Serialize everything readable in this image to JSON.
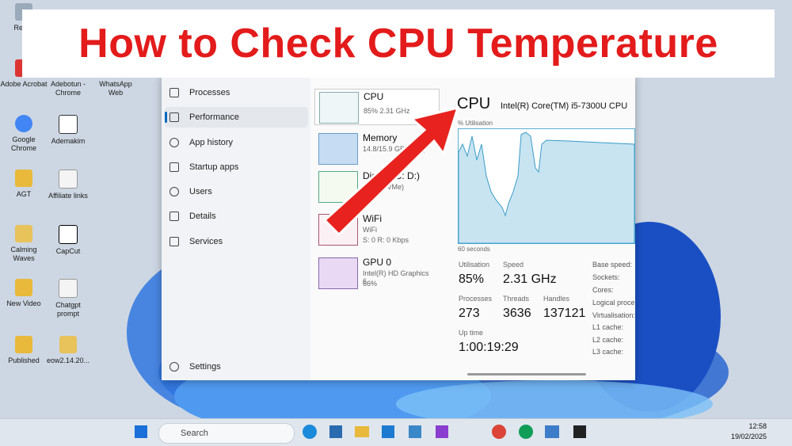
{
  "banner": {
    "title": "How to Check CPU Temperature"
  },
  "desktop": {
    "icons": [
      "Recyc",
      "Adobe Acrobat",
      "Adebotun - Chrome",
      "WhatsApp Web",
      "Google Chrome",
      "Ademakim",
      "AGT",
      "Affiliate links",
      "Calming Waves",
      "CapCut",
      "New Video",
      "Chatgpt prompt",
      "Published",
      "eow2.14.20..."
    ]
  },
  "nav": {
    "items": [
      "Processes",
      "Performance",
      "App history",
      "Startup apps",
      "Users",
      "Details",
      "Services"
    ],
    "settings": "Settings"
  },
  "devices": [
    {
      "name": "CPU",
      "detail": "85% 2.31 GHz"
    },
    {
      "name": "Memory",
      "detail": "14.8/15.9 GB (93%)"
    },
    {
      "name": "Disk 0 (C: D:)",
      "detail": "SSD (NVMe)"
    },
    {
      "name": "WiFi",
      "detail": "WiFi",
      "detail2": "S: 0 R: 0 Kbps"
    },
    {
      "name": "GPU 0",
      "detail": "Intel(R) HD Graphics 6...",
      "detail2": "66%"
    }
  ],
  "detail": {
    "title": "CPU",
    "model": "Intel(R) Core(TM) i5-7300U CPU",
    "graph_label": "% Utilisation",
    "graph_span": "60 seconds",
    "stats": [
      {
        "label": "Utilisation",
        "value": "85%"
      },
      {
        "label": "Speed",
        "value": "2.31 GHz"
      },
      {
        "label": "Processes",
        "value": "273"
      },
      {
        "label": "Threads",
        "value": "3636"
      },
      {
        "label": "Handles",
        "value": "137121"
      },
      {
        "label": "Up time",
        "value": "1:00:19:29"
      }
    ],
    "specs": [
      "Base speed:",
      "Sockets:",
      "Cores:",
      "Logical proce",
      "Virtualisation:",
      "L1 cache:",
      "L2 cache:",
      "L3 cache:"
    ]
  },
  "taskbar": {
    "search": "Search",
    "time": "12:58",
    "date": "19/02/2025"
  }
}
